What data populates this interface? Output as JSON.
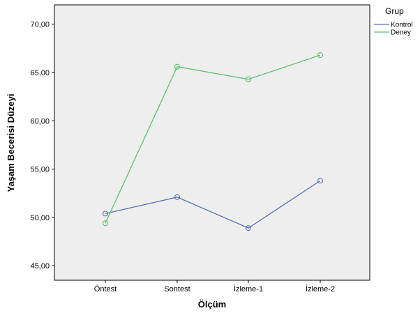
{
  "chart_data": {
    "type": "line",
    "title": "",
    "xlabel": "Ölçüm",
    "ylabel": "Yaşam Becerisi Düzeyi",
    "categories": [
      "Öntest",
      "Sontest",
      "İzleme-1",
      "İzleme-2"
    ],
    "ylim": [
      43.5,
      72
    ],
    "yticks": [
      45,
      50,
      55,
      60,
      65,
      70
    ],
    "ytick_labels": [
      "45,00",
      "50,00",
      "55,00",
      "60,00",
      "65,00",
      "70,00"
    ],
    "grid": false,
    "legend": {
      "title": "Grup",
      "placement": "right-top"
    },
    "series": [
      {
        "name": "Kontrol",
        "color": "#5672b8",
        "values": [
          50.4,
          52.1,
          48.9,
          53.8
        ]
      },
      {
        "name": "Deney",
        "color": "#5cbf6c",
        "values": [
          49.4,
          65.6,
          64.3,
          66.8
        ]
      }
    ]
  }
}
